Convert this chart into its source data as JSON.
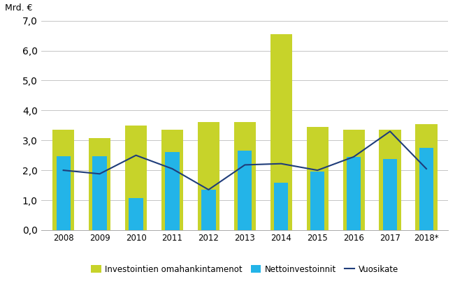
{
  "years": [
    "2008",
    "2009",
    "2010",
    "2011",
    "2012",
    "2013",
    "2014",
    "2015",
    "2016",
    "2017",
    "2018*"
  ],
  "omahankintamenot": [
    3.35,
    3.08,
    3.5,
    3.35,
    3.6,
    3.6,
    6.55,
    3.45,
    3.35,
    3.35,
    3.55
  ],
  "nettoinvestoinnit": [
    2.47,
    2.47,
    1.08,
    2.62,
    1.35,
    2.65,
    1.58,
    1.95,
    2.45,
    2.38,
    2.75
  ],
  "vuosikate": [
    2.0,
    1.88,
    2.5,
    2.05,
    1.35,
    2.18,
    2.22,
    2.0,
    2.45,
    3.3,
    2.05
  ],
  "bar_color_green": "#c7d32a",
  "bar_color_blue": "#23b4e8",
  "line_color": "#1f3d7a",
  "ylabel": "Mrd. €",
  "ylim": [
    0,
    7.0
  ],
  "yticks": [
    0.0,
    1.0,
    2.0,
    3.0,
    4.0,
    5.0,
    6.0,
    7.0
  ],
  "legend_labels": [
    "Investointien omahankintamenot",
    "Nettoinvestoinnit",
    "Vuosikate"
  ],
  "background_color": "#ffffff",
  "grid_color": "#bbbbbb"
}
